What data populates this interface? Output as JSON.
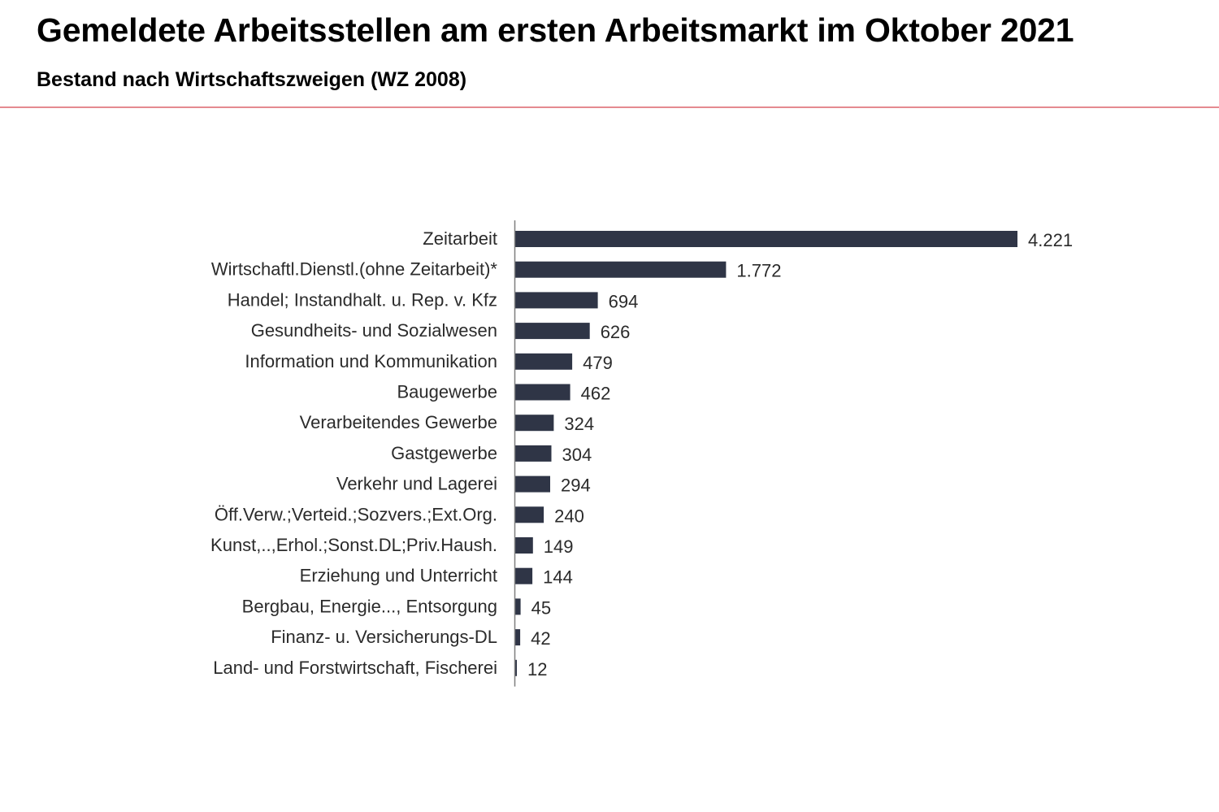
{
  "header": {
    "title": "Gemeldete Arbeitsstellen am ersten Arbeitsmarkt im Oktober 2021",
    "subtitle": "Bestand nach Wirtschaftszweigen (WZ 2008)"
  },
  "colors": {
    "bar": "#2f3546",
    "axis": "#7f7f7f",
    "header_rule": "#e58a90"
  },
  "chart_data": {
    "type": "bar",
    "orientation": "horizontal",
    "title": "",
    "xlabel": "",
    "ylabel": "",
    "grid": false,
    "legend": "none",
    "xlim": [
      0,
      4221
    ],
    "categories": [
      "Zeitarbeit",
      "Wirtschaftl.Dienstl.(ohne Zeitarbeit)*",
      "Handel; Instandhalt. u. Rep. v. Kfz",
      "Gesundheits- und Sozialwesen",
      "Information und Kommunikation",
      "Baugewerbe",
      "Verarbeitendes Gewerbe",
      "Gastgewerbe",
      "Verkehr und Lagerei",
      "Öff.Verw.;Verteid.;Sozvers.;Ext.Org.",
      "Kunst,..,Erhol.;Sonst.DL;Priv.Haush.",
      "Erziehung und Unterricht",
      "Bergbau, Energie..., Entsorgung",
      "Finanz- u. Versicherungs-DL",
      "Land- und Forstwirtschaft, Fischerei"
    ],
    "values": [
      4221,
      1772,
      694,
      626,
      479,
      462,
      324,
      304,
      294,
      240,
      149,
      144,
      45,
      42,
      12
    ],
    "value_labels": [
      "4.221",
      "1.772",
      "694",
      "626",
      "479",
      "462",
      "324",
      "304",
      "294",
      "240",
      "149",
      "144",
      "45",
      "42",
      "12"
    ]
  }
}
